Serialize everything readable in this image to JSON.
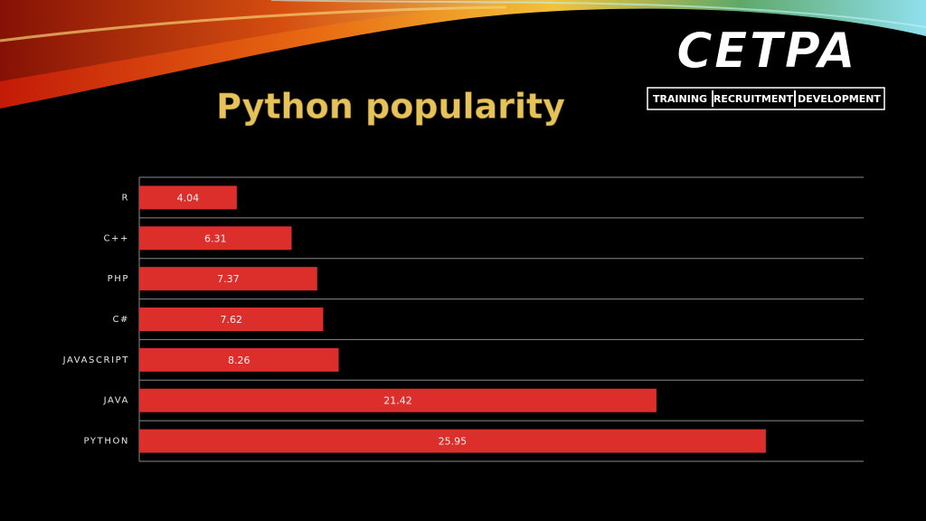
{
  "chart_data": {
    "type": "bar",
    "orientation": "horizontal",
    "title": "Python popularity",
    "categories": [
      "R",
      "C++",
      "PHP",
      "C#",
      "JAVASCRIPT",
      "JAVA",
      "PYTHON"
    ],
    "values": [
      4.04,
      6.31,
      7.37,
      7.62,
      8.26,
      21.42,
      25.95
    ],
    "color": "#dc2e2b",
    "xlim": [
      0,
      30
    ],
    "data_labels": true
  },
  "logo": {
    "name": "CETPA",
    "tagline": [
      "TRAINING",
      "RECRUITMENT",
      "DEVELOPMENT"
    ]
  }
}
